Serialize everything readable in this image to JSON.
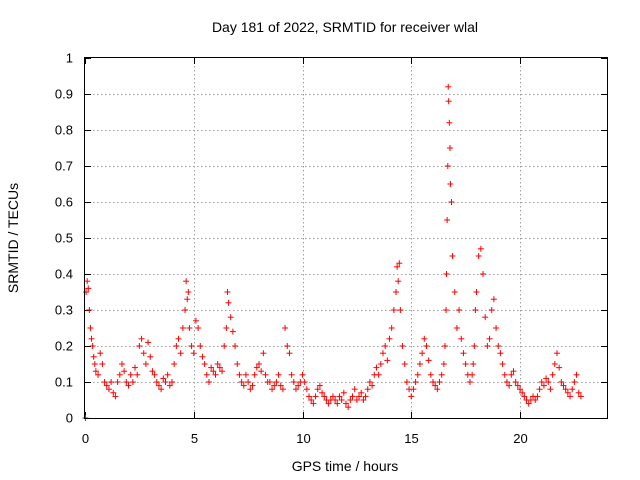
{
  "chart_data": {
    "type": "scatter",
    "title": "Day 181 of 2022, SRMTID for receiver wlal",
    "xlabel": "GPS time / hours",
    "ylabel": "SRMTID / TECUs",
    "xlim": [
      0,
      24
    ],
    "ylim": [
      0,
      1
    ],
    "xticks": [
      0,
      5,
      10,
      15,
      20
    ],
    "xtick_labels": [
      "0",
      "5",
      "10",
      "15",
      "20"
    ],
    "yticks": [
      0,
      0.1,
      0.2,
      0.3,
      0.4,
      0.5,
      0.6,
      0.7,
      0.8,
      0.9,
      1
    ],
    "ytick_labels": [
      "0",
      "0.1",
      "0.2",
      "0.3",
      "0.4",
      "0.5",
      "0.6",
      "0.7",
      "0.8",
      "0.9",
      "1"
    ],
    "grid": true,
    "marker": "+",
    "marker_color": "#ff0000",
    "series": [
      {
        "name": "SRMTID",
        "x": [
          0.02,
          0.05,
          0.1,
          0.15,
          0.2,
          0.25,
          0.3,
          0.35,
          0.4,
          0.45,
          0.5,
          0.6,
          0.7,
          0.8,
          0.9,
          1.0,
          1.1,
          1.2,
          1.3,
          1.4,
          1.5,
          1.6,
          1.7,
          1.8,
          1.9,
          2.0,
          2.1,
          2.2,
          2.3,
          2.4,
          2.5,
          2.6,
          2.7,
          2.8,
          2.9,
          3.0,
          3.1,
          3.2,
          3.3,
          3.4,
          3.5,
          3.6,
          3.7,
          3.8,
          3.9,
          4.0,
          4.1,
          4.2,
          4.3,
          4.4,
          4.5,
          4.6,
          4.65,
          4.7,
          4.75,
          4.8,
          4.9,
          5.0,
          5.1,
          5.2,
          5.3,
          5.4,
          5.5,
          5.6,
          5.7,
          5.8,
          5.9,
          6.0,
          6.1,
          6.2,
          6.3,
          6.4,
          6.5,
          6.55,
          6.6,
          6.7,
          6.8,
          6.9,
          7.0,
          7.1,
          7.2,
          7.3,
          7.4,
          7.5,
          7.6,
          7.7,
          7.8,
          7.9,
          8.0,
          8.1,
          8.2,
          8.3,
          8.4,
          8.5,
          8.6,
          8.7,
          8.8,
          8.9,
          9.0,
          9.1,
          9.2,
          9.3,
          9.4,
          9.5,
          9.6,
          9.7,
          9.8,
          9.9,
          10.0,
          10.1,
          10.2,
          10.3,
          10.4,
          10.5,
          10.6,
          10.7,
          10.8,
          10.9,
          11.0,
          11.1,
          11.2,
          11.3,
          11.4,
          11.5,
          11.6,
          11.7,
          11.8,
          11.9,
          12.0,
          12.1,
          12.2,
          12.3,
          12.4,
          12.5,
          12.6,
          12.7,
          12.8,
          12.9,
          13.0,
          13.1,
          13.2,
          13.3,
          13.4,
          13.5,
          13.6,
          13.7,
          13.8,
          13.9,
          14.0,
          14.1,
          14.2,
          14.3,
          14.35,
          14.4,
          14.45,
          14.5,
          14.6,
          14.7,
          14.8,
          14.9,
          15.0,
          15.1,
          15.2,
          15.3,
          15.4,
          15.5,
          15.6,
          15.7,
          15.8,
          15.9,
          16.0,
          16.1,
          16.2,
          16.3,
          16.4,
          16.5,
          16.55,
          16.6,
          16.62,
          16.65,
          16.68,
          16.7,
          16.72,
          16.75,
          16.78,
          16.8,
          16.85,
          16.9,
          17.0,
          17.1,
          17.2,
          17.3,
          17.4,
          17.5,
          17.6,
          17.7,
          17.8,
          17.85,
          17.9,
          17.95,
          18.0,
          18.1,
          18.2,
          18.3,
          18.4,
          18.5,
          18.6,
          18.7,
          18.8,
          18.9,
          19.0,
          19.1,
          19.2,
          19.3,
          19.4,
          19.5,
          19.6,
          19.7,
          19.8,
          19.9,
          20.0,
          20.1,
          20.2,
          20.3,
          20.4,
          20.5,
          20.6,
          20.7,
          20.8,
          20.9,
          21.0,
          21.1,
          21.2,
          21.3,
          21.4,
          21.5,
          21.6,
          21.7,
          21.8,
          21.9,
          22.0,
          22.1,
          22.2,
          22.3,
          22.4,
          22.5,
          22.6,
          22.7,
          22.8
        ],
        "y": [
          0.0,
          0.35,
          0.38,
          0.36,
          0.3,
          0.25,
          0.22,
          0.2,
          0.17,
          0.15,
          0.13,
          0.12,
          0.18,
          0.15,
          0.1,
          0.09,
          0.08,
          0.1,
          0.07,
          0.06,
          0.1,
          0.12,
          0.15,
          0.13,
          0.1,
          0.09,
          0.12,
          0.1,
          0.14,
          0.12,
          0.2,
          0.22,
          0.18,
          0.15,
          0.21,
          0.17,
          0.13,
          0.12,
          0.1,
          0.09,
          0.08,
          0.11,
          0.1,
          0.12,
          0.09,
          0.1,
          0.15,
          0.2,
          0.22,
          0.18,
          0.25,
          0.3,
          0.38,
          0.33,
          0.35,
          0.25,
          0.2,
          0.18,
          0.27,
          0.25,
          0.2,
          0.17,
          0.15,
          0.12,
          0.1,
          0.14,
          0.13,
          0.12,
          0.15,
          0.14,
          0.13,
          0.2,
          0.25,
          0.35,
          0.32,
          0.28,
          0.24,
          0.2,
          0.15,
          0.12,
          0.1,
          0.09,
          0.12,
          0.1,
          0.08,
          0.09,
          0.12,
          0.14,
          0.15,
          0.13,
          0.18,
          0.12,
          0.1,
          0.1,
          0.08,
          0.09,
          0.1,
          0.12,
          0.09,
          0.08,
          0.25,
          0.2,
          0.18,
          0.12,
          0.1,
          0.08,
          0.09,
          0.1,
          0.12,
          0.1,
          0.08,
          0.06,
          0.05,
          0.04,
          0.06,
          0.08,
          0.09,
          0.07,
          0.06,
          0.05,
          0.04,
          0.05,
          0.06,
          0.05,
          0.04,
          0.06,
          0.05,
          0.07,
          0.04,
          0.03,
          0.05,
          0.06,
          0.08,
          0.05,
          0.06,
          0.07,
          0.05,
          0.06,
          0.08,
          0.1,
          0.09,
          0.12,
          0.14,
          0.12,
          0.15,
          0.18,
          0.2,
          0.16,
          0.22,
          0.25,
          0.3,
          0.35,
          0.42,
          0.38,
          0.43,
          0.3,
          0.2,
          0.15,
          0.1,
          0.08,
          0.06,
          0.08,
          0.1,
          0.12,
          0.15,
          0.18,
          0.22,
          0.2,
          0.16,
          0.12,
          0.1,
          0.09,
          0.08,
          0.1,
          0.12,
          0.15,
          0.2,
          0.3,
          0.4,
          0.55,
          0.7,
          0.92,
          0.88,
          0.82,
          0.75,
          0.65,
          0.6,
          0.45,
          0.35,
          0.25,
          0.3,
          0.22,
          0.18,
          0.15,
          0.12,
          0.1,
          0.12,
          0.15,
          0.2,
          0.3,
          0.35,
          0.45,
          0.47,
          0.4,
          0.28,
          0.2,
          0.22,
          0.3,
          0.33,
          0.25,
          0.2,
          0.18,
          0.15,
          0.12,
          0.1,
          0.09,
          0.12,
          0.13,
          0.1,
          0.09,
          0.08,
          0.07,
          0.06,
          0.05,
          0.04,
          0.05,
          0.06,
          0.05,
          0.06,
          0.08,
          0.1,
          0.09,
          0.11,
          0.1,
          0.08,
          0.12,
          0.15,
          0.18,
          0.14,
          0.1,
          0.09,
          0.08,
          0.07,
          0.06,
          0.08,
          0.1,
          0.12,
          0.07,
          0.06
        ]
      }
    ]
  }
}
